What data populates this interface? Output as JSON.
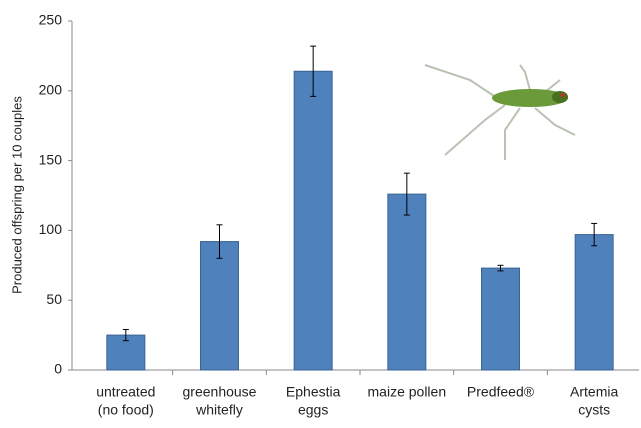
{
  "chart_data": {
    "type": "bar",
    "y_label": "Produced offspring per 10 couples",
    "categories": [
      [
        "untreated",
        "(no food)"
      ],
      [
        "greenhouse",
        "whitefly"
      ],
      [
        "Ephestia",
        "eggs"
      ],
      [
        "maize pollen"
      ],
      [
        "Predfeed®"
      ],
      [
        "Artemia",
        "cysts"
      ]
    ],
    "values": [
      25,
      92,
      214,
      126,
      73,
      97
    ],
    "errors": [
      4,
      12,
      18,
      15,
      2,
      8
    ],
    "color": "#4f81bd",
    "ylim": [
      0,
      250
    ],
    "yticks": [
      0,
      50,
      100,
      150,
      200,
      250
    ],
    "grid": false
  }
}
